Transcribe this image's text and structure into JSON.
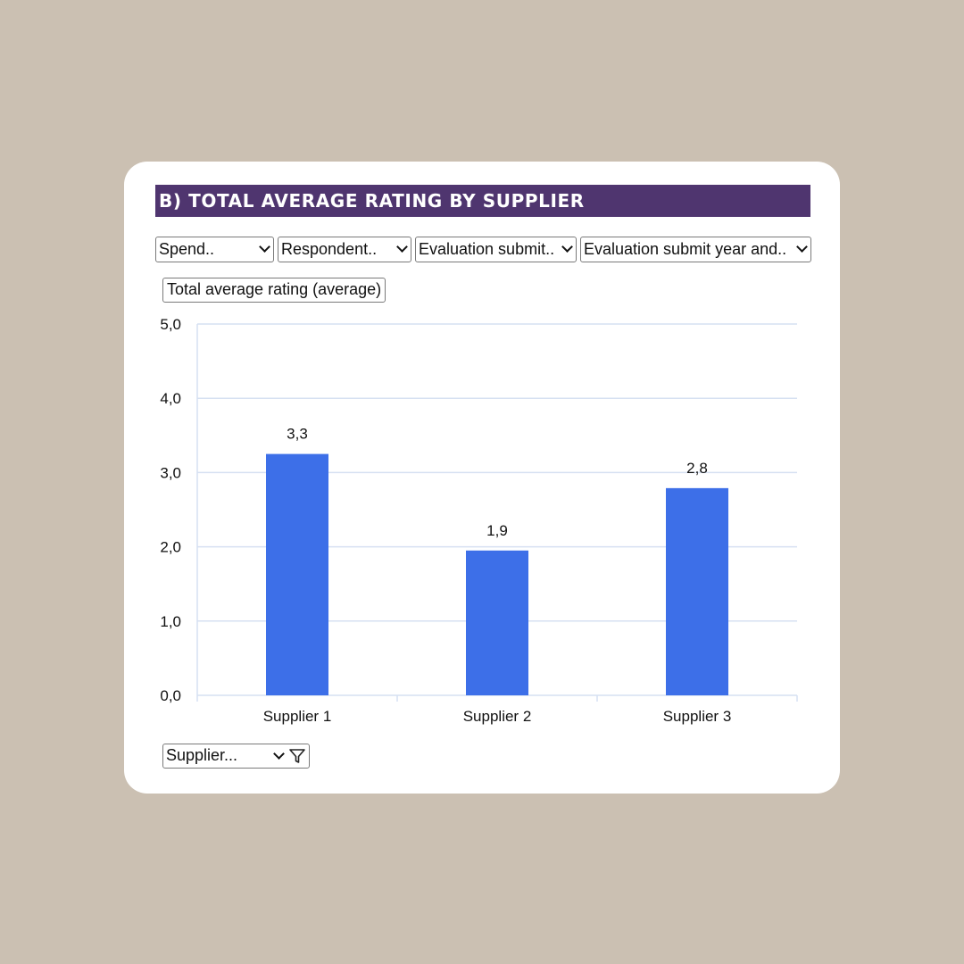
{
  "title": "B) TOTAL AVERAGE RATING BY SUPPLIER",
  "filters": [
    {
      "label": "Spend.."
    },
    {
      "label": "Respondent.."
    },
    {
      "label": "Evaluation submit.."
    },
    {
      "label": "Evaluation submit year and.."
    }
  ],
  "measure_button": "Total average rating (average)",
  "supplier_filter": "Supplier...",
  "colors": {
    "bar": "#3d6fe8",
    "title_bg": "#4f356f",
    "grid": "#d6e0f2"
  },
  "chart_data": {
    "type": "bar",
    "categories": [
      "Supplier 1",
      "Supplier 2",
      "Supplier 3"
    ],
    "values": [
      3.25,
      1.95,
      2.79
    ],
    "data_labels": [
      "3,3",
      "1,9",
      "2,8"
    ],
    "yticks": [
      "0,0",
      "1,0",
      "2,0",
      "3,0",
      "4,0",
      "5,0"
    ],
    "ylim": [
      0,
      5
    ],
    "title": "",
    "xlabel": "",
    "ylabel": "",
    "grid": true
  }
}
